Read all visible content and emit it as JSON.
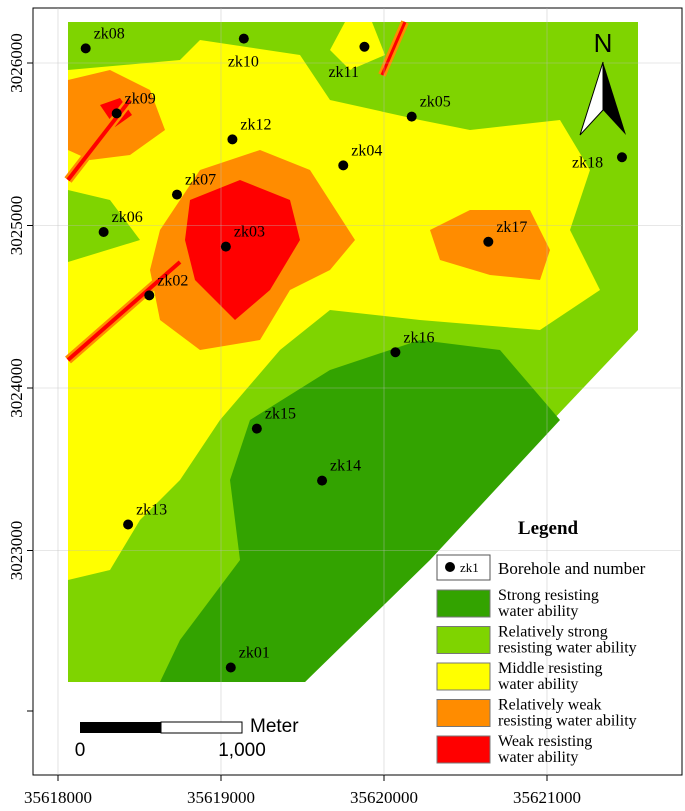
{
  "map": {
    "xticks": [
      35618000,
      35619000,
      35620000,
      35621000
    ],
    "yticks": [
      3026000,
      3025000,
      3024000,
      3023000
    ],
    "north": "N",
    "boreholes": [
      {
        "name": "zk08",
        "x": 35618170,
        "y": 3026090
      },
      {
        "name": "zk10",
        "x": 35619140,
        "y": 3026150
      },
      {
        "name": "zk11",
        "x": 35619880,
        "y": 3026100
      },
      {
        "name": "zk09",
        "x": 35618360,
        "y": 3025690
      },
      {
        "name": "zk05",
        "x": 35620170,
        "y": 3025670
      },
      {
        "name": "zk12",
        "x": 35619070,
        "y": 3025530
      },
      {
        "name": "zk04",
        "x": 35619750,
        "y": 3025370
      },
      {
        "name": "zk18",
        "x": 35621460,
        "y": 3025420
      },
      {
        "name": "zk07",
        "x": 35618730,
        "y": 3025190
      },
      {
        "name": "zk06",
        "x": 35618280,
        "y": 3024960
      },
      {
        "name": "zk03",
        "x": 35619030,
        "y": 3024870
      },
      {
        "name": "zk17",
        "x": 35620640,
        "y": 3024900
      },
      {
        "name": "zk02",
        "x": 35618560,
        "y": 3024570
      },
      {
        "name": "zk16",
        "x": 35620070,
        "y": 3024220
      },
      {
        "name": "zk15",
        "x": 35619220,
        "y": 3023750
      },
      {
        "name": "zk14",
        "x": 35619620,
        "y": 3023430
      },
      {
        "name": "zk13",
        "x": 35618430,
        "y": 3023160
      },
      {
        "name": "zk01",
        "x": 35619060,
        "y": 3022280
      }
    ],
    "scale_bar": {
      "unit": "Meter",
      "labels": [
        "0",
        "1,000"
      ]
    },
    "legend": {
      "title": "Legend",
      "borehole": {
        "symbol": "zk1",
        "label": "Borehole and number"
      },
      "items": [
        {
          "color": "#33a300",
          "label": [
            "Strong resisting",
            "water ability"
          ]
        },
        {
          "color": "#7fd400",
          "label": [
            "Relatively strong",
            "resisting water ability"
          ]
        },
        {
          "color": "#ffff00",
          "label": [
            "Middle resisting",
            "water ability"
          ]
        },
        {
          "color": "#ff8c00",
          "label": [
            "Relatively weak",
            "resisting water ability"
          ]
        },
        {
          "color": "#ff0000",
          "label": [
            "Weak resisting",
            "water ability"
          ]
        }
      ]
    }
  }
}
